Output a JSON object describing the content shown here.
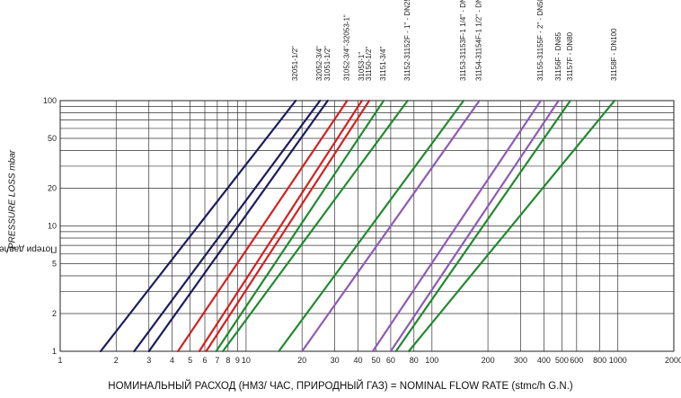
{
  "chart_data": {
    "type": "line",
    "xlabel_ru": "НОМИНАЛЬНЫЙ РАСХОД (НМ3/ ЧАС, ПРИРОДНЫЙ ГАЗ)",
    "xlabel_sep": " = ",
    "xlabel_en": "NOMINAL FLOW RATE (stmc/h G.N.)",
    "ylabel_ru": "Потери давления, мбар",
    "ylabel_sep": " / ",
    "ylabel_en": "PRESSURE LOSS mbar",
    "xscale": "log",
    "yscale": "log",
    "xlim": [
      1,
      2000
    ],
    "ylim": [
      1,
      100
    ],
    "grid": true,
    "x_ticks": [
      1,
      2,
      3,
      4,
      5,
      6,
      7,
      8,
      9,
      10,
      20,
      30,
      40,
      50,
      60,
      80,
      100,
      200,
      300,
      400,
      500,
      600,
      800,
      1000,
      2000
    ],
    "x_tick_labels": [
      "1",
      "2",
      "3",
      "4",
      "5",
      "6",
      "7",
      "8",
      "9",
      "10",
      "20",
      "30",
      "40",
      "50",
      "60",
      "80",
      "100",
      "200",
      "300",
      "400",
      "500",
      "600",
      "800",
      "1000",
      "2000"
    ],
    "y_ticks": [
      1,
      2,
      5,
      10,
      20,
      50,
      100
    ],
    "y_tick_labels": [
      "1",
      "2",
      "5",
      "10",
      "20",
      "50",
      "100"
    ],
    "series": [
      {
        "name": "32051-1/2\"",
        "color": "#1c1c5e",
        "x": [
          1.65,
          18.5
        ],
        "y": [
          1,
          100
        ]
      },
      {
        "name": "32052-3/4\"",
        "color": "#1c1c5e",
        "x": [
          2.5,
          25.0
        ],
        "y": [
          1,
          100
        ]
      },
      {
        "name": "31051-1/2\"",
        "color": "#1c1c5e",
        "x": [
          3.0,
          27.5
        ],
        "y": [
          1,
          100
        ]
      },
      {
        "name": "31052-3/4\"-32053-1\"",
        "color": "#d42020",
        "x": [
          4.3,
          35.0
        ],
        "y": [
          1,
          100
        ]
      },
      {
        "name": "31053-1\"",
        "color": "#d42020",
        "x": [
          5.6,
          42.0
        ],
        "y": [
          1,
          100
        ]
      },
      {
        "name": "31150-1/2\"",
        "color": "#d42020",
        "x": [
          6.1,
          46.0
        ],
        "y": [
          1,
          100
        ]
      },
      {
        "name": "31151-3/4\"",
        "color": "#218a2e",
        "x": [
          6.9,
          55.0
        ],
        "y": [
          1,
          100
        ]
      },
      {
        "name": "31152-31152F - 1\" - DN25",
        "color": "#218a2e",
        "x": [
          7.5,
          74.0
        ],
        "y": [
          1,
          100
        ]
      },
      {
        "name": "31153-31153F-1 1/4\" - DN32",
        "color": "#218a2e",
        "x": [
          15.0,
          148.0
        ],
        "y": [
          1,
          100
        ]
      },
      {
        "name": "31154-31154F-1 1/2\" - DN40",
        "color": "#8e5bb5",
        "x": [
          20.0,
          180.0
        ],
        "y": [
          1,
          100
        ]
      },
      {
        "name": "31155-31155F - 2\" - DN50",
        "color": "#8e5bb5",
        "x": [
          48.0,
          385.0
        ],
        "y": [
          1,
          100
        ]
      },
      {
        "name": "31156F - DN65",
        "color": "#8e5bb5",
        "x": [
          60.0,
          480.0
        ],
        "y": [
          1,
          100
        ]
      },
      {
        "name": "31157F - DN80",
        "color": "#218a2e",
        "x": [
          64.0,
          555.0
        ],
        "y": [
          1,
          100
        ]
      },
      {
        "name": "31158F - DN100",
        "color": "#218a2e",
        "x": [
          75.0,
          960.0
        ],
        "y": [
          1,
          100
        ]
      }
    ]
  }
}
